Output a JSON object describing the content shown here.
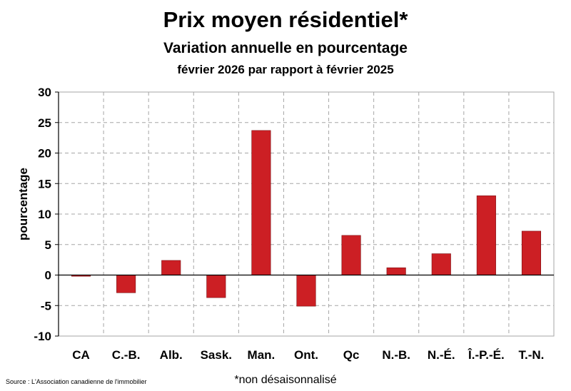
{
  "header": {
    "title": "Prix moyen résidentiel*",
    "subtitle": "Variation annuelle en pourcentage",
    "period": "février 2026 par rapport à février 2025"
  },
  "footer": {
    "source": "Source : L'Association canadienne de l'immobilier",
    "note": "*non désaisonnalisé"
  },
  "colors": {
    "bar": "#cc1f24",
    "bar_stroke": "#7a1013",
    "grid": "#a6a6a6",
    "axis": "#000000"
  },
  "chart_data": {
    "type": "bar",
    "title": "Prix moyen résidentiel*",
    "ylabel": "pourcentage",
    "categories": [
      "CA",
      "C.-B.",
      "Alb.",
      "Sask.",
      "Man.",
      "Ont.",
      "Qc",
      "N.-B.",
      "N.-É.",
      "Î.-P.-É.",
      "T.-N."
    ],
    "values": [
      -0.2,
      -2.9,
      2.4,
      -3.7,
      23.7,
      -5.1,
      6.5,
      1.2,
      3.5,
      13.0,
      7.2
    ],
    "ylim": [
      -10,
      30
    ],
    "yticks": [
      -10,
      -5,
      0,
      5,
      10,
      15,
      20,
      25,
      30
    ],
    "grid": true,
    "legend": "none"
  }
}
